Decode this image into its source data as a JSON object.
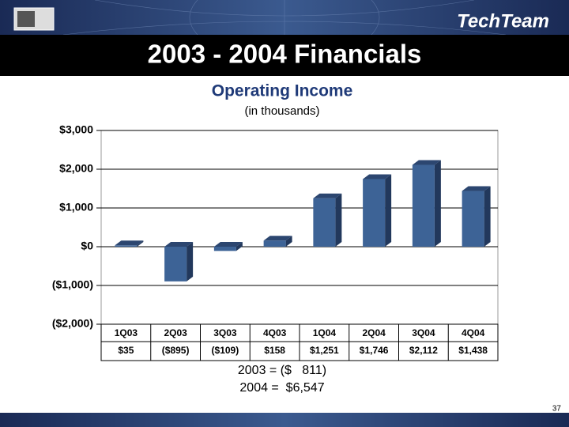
{
  "slide": {
    "title": "2003 - 2004 Financials",
    "logo": "TechTeam",
    "notes": [
      "2003 = ($   811)",
      "2004 =  $6,547"
    ],
    "page_number": "37"
  },
  "chart_data": {
    "type": "bar",
    "title": "Operating Income",
    "subtitle": "(in thousands)",
    "categories": [
      "1Q03",
      "2Q03",
      "3Q03",
      "4Q03",
      "1Q04",
      "2Q04",
      "3Q04",
      "4Q04"
    ],
    "values": [
      35,
      -895,
      -109,
      158,
      1251,
      1746,
      2112,
      1438
    ],
    "value_labels": [
      "$35",
      "($895)",
      "($109)",
      "$158",
      "$1,251",
      "$1,746",
      "$2,112",
      "$1,438"
    ],
    "color": "#3d6396",
    "ylim": [
      -2000,
      3000
    ],
    "yticks": [
      {
        "value": -2000,
        "label": "($2,000)"
      },
      {
        "value": -1000,
        "label": "($1,000)"
      },
      {
        "value": 0,
        "label": "$0"
      },
      {
        "value": 1000,
        "label": "$1,000"
      },
      {
        "value": 2000,
        "label": "$2,000"
      },
      {
        "value": 3000,
        "label": "$3,000"
      }
    ],
    "grid": true
  }
}
